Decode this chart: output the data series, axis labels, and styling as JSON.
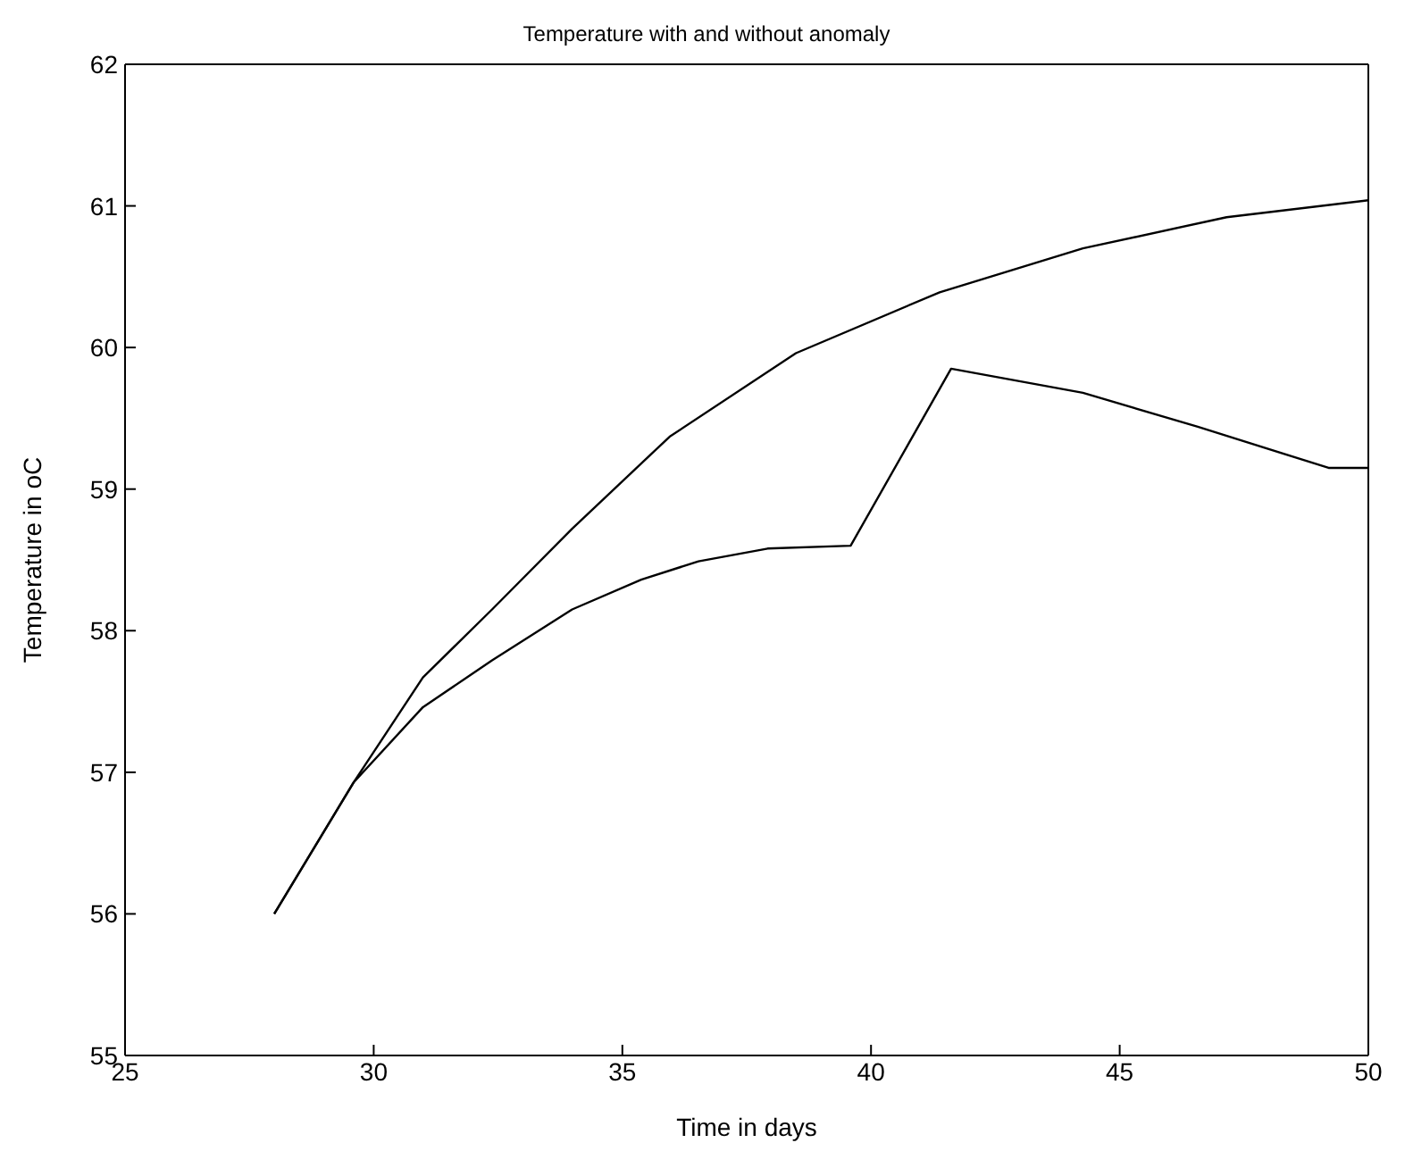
{
  "chart_data": {
    "type": "line",
    "title": "Temperature with and without anomaly",
    "xlabel": "Time in days",
    "ylabel": "Temperature in oC",
    "xlim": [
      25,
      50
    ],
    "xticks": [
      25,
      30,
      35,
      40,
      45,
      50
    ],
    "ylim": [
      55,
      62
    ],
    "yticks": [
      55,
      56,
      57,
      58,
      59,
      60,
      61,
      62
    ],
    "marker": "none",
    "line_style": "solid",
    "series": [
      {
        "color": "#000000",
        "x": [
          28.0,
          29.6,
          30.99,
          32.38,
          33.99,
          35.95,
          38.49,
          41.38,
          44.26,
          47.15,
          50.0
        ],
        "values": [
          56.0,
          56.93,
          57.67,
          58.15,
          58.72,
          59.37,
          59.96,
          60.39,
          60.7,
          60.92,
          61.04
        ]
      },
      {
        "color": "#000000",
        "x": [
          28.0,
          29.6,
          30.99,
          32.38,
          33.99,
          35.38,
          36.53,
          37.92,
          39.59,
          41.61,
          44.26,
          46.57,
          49.2,
          50.0
        ],
        "values": [
          56.0,
          56.93,
          57.46,
          57.79,
          58.15,
          58.36,
          58.49,
          58.58,
          58.6,
          59.85,
          59.68,
          59.44,
          59.15,
          59.15
        ]
      }
    ]
  }
}
